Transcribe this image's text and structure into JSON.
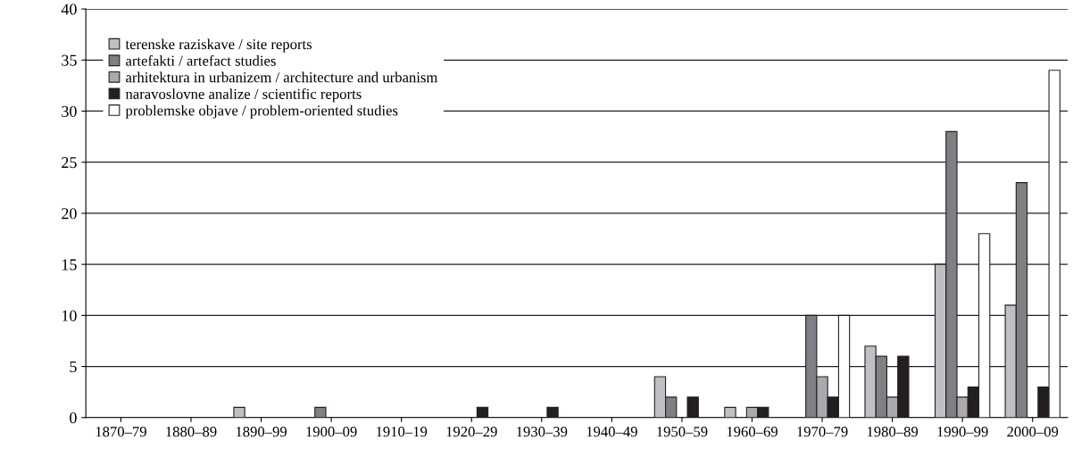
{
  "chart_data": {
    "type": "bar",
    "categories": [
      "1870–79",
      "1880–89",
      "1890–99",
      "1900–09",
      "1910–19",
      "1920–29",
      "1930–39",
      "1940–49",
      "1950–59",
      "1960–69",
      "1970–79",
      "1980–89",
      "1990–99",
      "2000–09"
    ],
    "series": [
      {
        "name": "terenske raziskave / site reports",
        "color": "#bfbfc4",
        "values": [
          null,
          null,
          1,
          null,
          null,
          null,
          null,
          null,
          4,
          1,
          null,
          7,
          15,
          11
        ]
      },
      {
        "name": "artefakti / artefact studies",
        "color": "#7f7f84",
        "values": [
          null,
          null,
          null,
          1,
          null,
          null,
          null,
          null,
          2,
          null,
          10,
          6,
          28,
          23
        ]
      },
      {
        "name": "arhitektura in urbanizem / architecture and urbanism",
        "color": "#a9a9ae",
        "values": [
          null,
          null,
          null,
          null,
          null,
          null,
          null,
          null,
          null,
          1,
          4,
          2,
          2,
          null
        ]
      },
      {
        "name": "naravoslovne analize / scientific reports",
        "color": "#231f20",
        "values": [
          null,
          null,
          null,
          null,
          null,
          1,
          1,
          null,
          2,
          1,
          2,
          6,
          3,
          3
        ]
      },
      {
        "name": "problemske objave / problem-oriented studies",
        "color": "#ffffff",
        "values": [
          null,
          null,
          null,
          null,
          null,
          null,
          null,
          null,
          null,
          null,
          10,
          null,
          18,
          34
        ]
      }
    ],
    "ylim": [
      0,
      40
    ],
    "yticks": [
      0,
      5,
      10,
      15,
      20,
      25,
      30,
      35,
      40
    ],
    "grid": "y",
    "legend": "top left"
  }
}
